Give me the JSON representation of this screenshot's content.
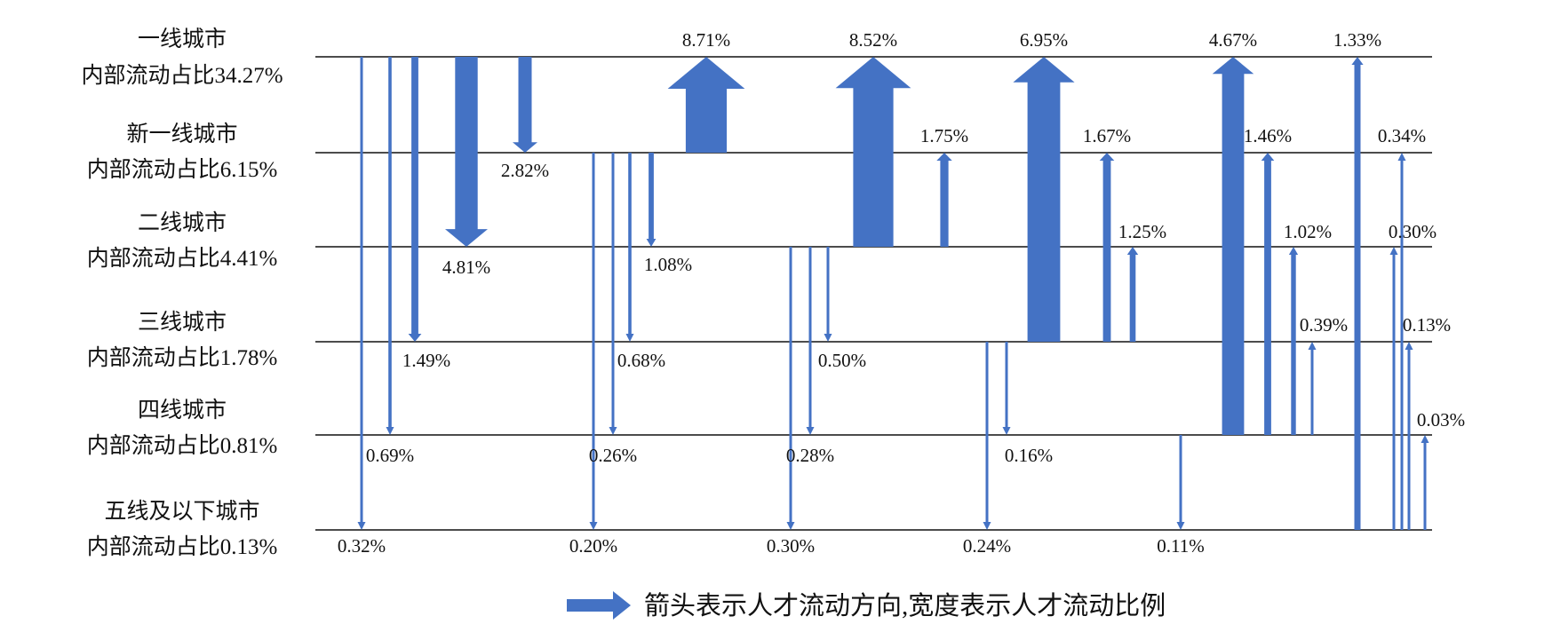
{
  "levels": [
    {
      "city": "一线城市",
      "internal": "内部流动占比34.27%"
    },
    {
      "city": "新一线城市",
      "internal": "内部流动占比6.15%"
    },
    {
      "city": "二线城市",
      "internal": "内部流动占比4.41%"
    },
    {
      "city": "三线城市",
      "internal": "内部流动占比1.78%"
    },
    {
      "city": "四线城市",
      "internal": "内部流动占比0.81%"
    },
    {
      "city": "五线及以下城市",
      "internal": "内部流动占比0.13%"
    }
  ],
  "flows": [
    {
      "from": "一线城市",
      "to": "五线及以下城市",
      "value": 0.32,
      "label": "0.32%"
    },
    {
      "from": "一线城市",
      "to": "四线城市",
      "value": 0.69,
      "label": "0.69%"
    },
    {
      "from": "一线城市",
      "to": "三线城市",
      "value": 1.49,
      "label": "1.49%"
    },
    {
      "from": "一线城市",
      "to": "二线城市",
      "value": 4.81,
      "label": "4.81%"
    },
    {
      "from": "一线城市",
      "to": "新一线城市",
      "value": 2.82,
      "label": "2.82%"
    },
    {
      "from": "新一线城市",
      "to": "一线城市",
      "value": 8.71,
      "label": "8.71%"
    },
    {
      "from": "新一线城市",
      "to": "五线及以下城市",
      "value": 0.2,
      "label": "0.20%"
    },
    {
      "from": "新一线城市",
      "to": "四线城市",
      "value": 0.26,
      "label": "0.26%"
    },
    {
      "from": "新一线城市",
      "to": "三线城市",
      "value": 0.68,
      "label": "0.68%"
    },
    {
      "from": "新一线城市",
      "to": "二线城市",
      "value": 1.08,
      "label": "1.08%"
    },
    {
      "from": "二线城市",
      "to": "一线城市",
      "value": 8.52,
      "label": "8.52%"
    },
    {
      "from": "二线城市",
      "to": "新一线城市",
      "value": 1.75,
      "label": "1.75%"
    },
    {
      "from": "二线城市",
      "to": "五线及以下城市",
      "value": 0.3,
      "label": "0.30%"
    },
    {
      "from": "二线城市",
      "to": "四线城市",
      "value": 0.28,
      "label": "0.28%"
    },
    {
      "from": "二线城市",
      "to": "三线城市",
      "value": 0.5,
      "label": "0.50%"
    },
    {
      "from": "三线城市",
      "to": "一线城市",
      "value": 6.95,
      "label": "6.95%"
    },
    {
      "from": "三线城市",
      "to": "新一线城市",
      "value": 1.67,
      "label": "1.67%"
    },
    {
      "from": "三线城市",
      "to": "二线城市",
      "value": 1.25,
      "label": "1.25%"
    },
    {
      "from": "三线城市",
      "to": "五线及以下城市",
      "value": 0.24,
      "label": "0.24%"
    },
    {
      "from": "三线城市",
      "to": "四线城市",
      "value": 0.16,
      "label": "0.16%"
    },
    {
      "from": "四线城市",
      "to": "一线城市",
      "value": 4.67,
      "label": "4.67%"
    },
    {
      "from": "四线城市",
      "to": "新一线城市",
      "value": 1.46,
      "label": "1.46%"
    },
    {
      "from": "四线城市",
      "to": "二线城市",
      "value": 1.02,
      "label": "1.02%"
    },
    {
      "from": "四线城市",
      "to": "三线城市",
      "value": 0.39,
      "label": "0.39%"
    },
    {
      "from": "四线城市",
      "to": "五线及以下城市",
      "value": 0.11,
      "label": "0.11%"
    },
    {
      "from": "五线及以下城市",
      "to": "一线城市",
      "value": 1.33,
      "label": "1.33%"
    },
    {
      "from": "五线及以下城市",
      "to": "新一线城市",
      "value": 0.34,
      "label": "0.34%"
    },
    {
      "from": "五线及以下城市",
      "to": "二线城市",
      "value": 0.3,
      "label": "0.30%"
    },
    {
      "from": "五线及以下城市",
      "to": "三线城市",
      "value": 0.13,
      "label": "0.13%"
    },
    {
      "from": "五线及以下城市",
      "to": "四线城市",
      "value": 0.03,
      "label": "0.03%"
    }
  ],
  "legend": {
    "text": "箭头表示人才流动方向,宽度表示人才流动比例",
    "icon": "right-arrow-icon"
  },
  "colors": {
    "arrow": "#4472C4",
    "line": "#111111",
    "text": "#111111"
  }
}
